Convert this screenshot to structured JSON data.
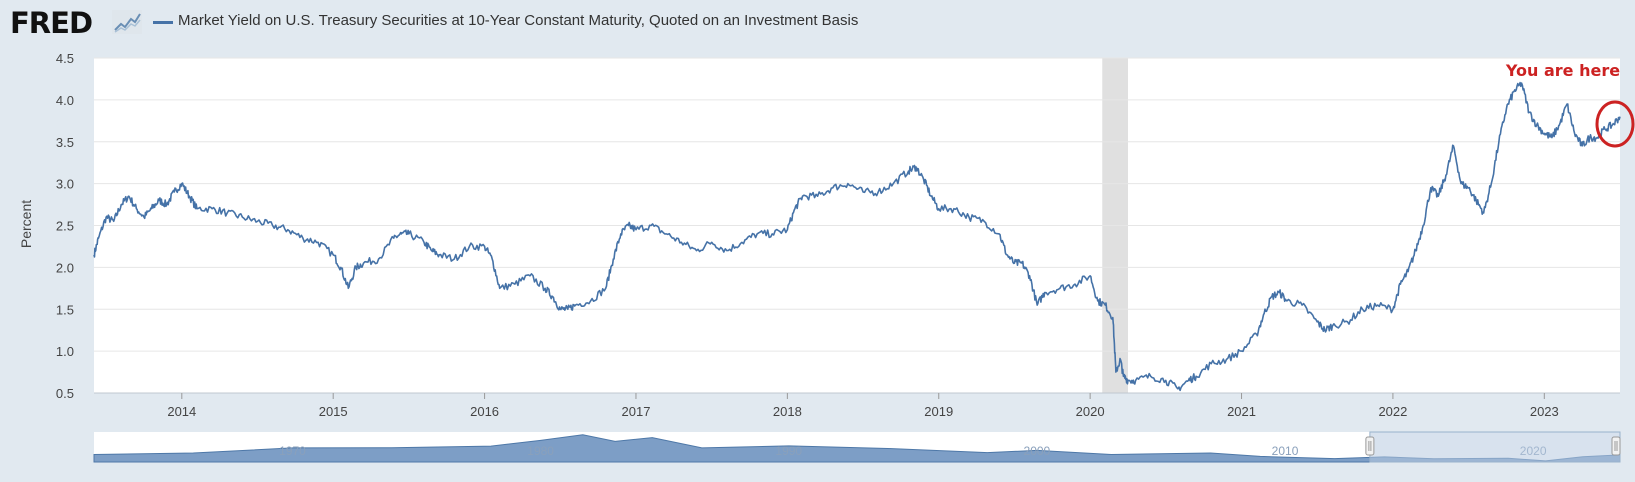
{
  "header": {
    "logo_text": "FRED",
    "logo_icon": "line-chart-icon",
    "series_title": "Market Yield on U.S. Treasury Securities at 10-Year Constant Maturity, Quoted on an Investment Basis"
  },
  "annotation": {
    "text": "You are here",
    "color": "#cc2222"
  },
  "navigator": {
    "labels": [
      "1970",
      "1980",
      "1990",
      "2000",
      "2010",
      "2020"
    ],
    "selection_range": [
      2013.42,
      2023.5
    ],
    "full_range": [
      1962,
      2023.5
    ]
  },
  "colors": {
    "line": "#4572a7",
    "background": "#e1e9f0",
    "plot_area": "#ffffff",
    "recession": "#e0e0e0",
    "annotation": "#cc2222"
  },
  "chart_data": {
    "type": "line",
    "title": "Market Yield on U.S. Treasury Securities at 10-Year Constant Maturity, Quoted on an Investment Basis",
    "xlabel": "",
    "ylabel": "Percent",
    "xlim": [
      2013.42,
      2023.5
    ],
    "ylim": [
      0.5,
      4.5
    ],
    "yticks": [
      0.5,
      1.0,
      1.5,
      2.0,
      2.5,
      3.0,
      3.5,
      4.0,
      4.5
    ],
    "ytick_labels": [
      "0.5",
      "1.0",
      "1.5",
      "2.0",
      "2.5",
      "3.0",
      "3.5",
      "4.0",
      "4.5"
    ],
    "xticks": [
      2014,
      2015,
      2016,
      2017,
      2018,
      2019,
      2020,
      2021,
      2022,
      2023
    ],
    "xtick_labels": [
      "2014",
      "2015",
      "2016",
      "2017",
      "2018",
      "2019",
      "2020",
      "2021",
      "2022",
      "2023"
    ],
    "grid": true,
    "recession_shading": [
      2020.08,
      2020.25
    ],
    "series": [
      {
        "color": "#4572a7",
        "x": [
          2013.42,
          2013.45,
          2013.5,
          2013.55,
          2013.6,
          2013.65,
          2013.7,
          2013.75,
          2013.8,
          2013.85,
          2013.9,
          2013.95,
          2014.0,
          2014.05,
          2014.1,
          2014.2,
          2014.3,
          2014.4,
          2014.5,
          2014.6,
          2014.7,
          2014.8,
          2014.9,
          2015.0,
          2015.05,
          2015.1,
          2015.15,
          2015.2,
          2015.3,
          2015.4,
          2015.45,
          2015.5,
          2015.6,
          2015.65,
          2015.7,
          2015.8,
          2015.9,
          2016.0,
          2016.05,
          2016.1,
          2016.2,
          2016.3,
          2016.4,
          2016.45,
          2016.5,
          2016.55,
          2016.6,
          2016.7,
          2016.8,
          2016.85,
          2016.9,
          2016.95,
          2017.0,
          2017.1,
          2017.2,
          2017.3,
          2017.4,
          2017.5,
          2017.6,
          2017.7,
          2017.8,
          2017.9,
          2018.0,
          2018.05,
          2018.1,
          2018.2,
          2018.3,
          2018.4,
          2018.5,
          2018.6,
          2018.7,
          2018.8,
          2018.85,
          2018.9,
          2018.95,
          2019.0,
          2019.1,
          2019.2,
          2019.3,
          2019.4,
          2019.45,
          2019.5,
          2019.55,
          2019.6,
          2019.65,
          2019.7,
          2019.8,
          2019.9,
          2020.0,
          2020.05,
          2020.1,
          2020.15,
          2020.17,
          2020.2,
          2020.22,
          2020.25,
          2020.3,
          2020.4,
          2020.5,
          2020.58,
          2020.65,
          2020.7,
          2020.8,
          2020.9,
          2021.0,
          2021.1,
          2021.15,
          2021.2,
          2021.25,
          2021.3,
          2021.4,
          2021.5,
          2021.55,
          2021.6,
          2021.7,
          2021.8,
          2021.9,
          2022.0,
          2022.05,
          2022.1,
          2022.15,
          2022.2,
          2022.25,
          2022.3,
          2022.35,
          2022.4,
          2022.45,
          2022.5,
          2022.55,
          2022.6,
          2022.65,
          2022.7,
          2022.75,
          2022.8,
          2022.85,
          2022.9,
          2022.95,
          2023.0,
          2023.05,
          2023.1,
          2023.15,
          2023.2,
          2023.25,
          2023.3,
          2023.35,
          2023.4,
          2023.45,
          2023.5
        ],
        "y": [
          2.15,
          2.35,
          2.6,
          2.55,
          2.75,
          2.85,
          2.7,
          2.6,
          2.7,
          2.8,
          2.75,
          2.9,
          3.0,
          2.85,
          2.7,
          2.7,
          2.65,
          2.6,
          2.55,
          2.5,
          2.45,
          2.35,
          2.3,
          2.15,
          2.0,
          1.75,
          2.0,
          2.05,
          2.1,
          2.35,
          2.4,
          2.4,
          2.3,
          2.2,
          2.15,
          2.1,
          2.25,
          2.25,
          2.1,
          1.75,
          1.8,
          1.9,
          1.75,
          1.65,
          1.5,
          1.5,
          1.55,
          1.6,
          1.75,
          2.1,
          2.4,
          2.5,
          2.45,
          2.5,
          2.4,
          2.3,
          2.2,
          2.3,
          2.2,
          2.3,
          2.4,
          2.4,
          2.45,
          2.7,
          2.85,
          2.85,
          2.95,
          3.0,
          2.9,
          2.9,
          3.0,
          3.15,
          3.2,
          3.05,
          2.85,
          2.7,
          2.7,
          2.6,
          2.55,
          2.4,
          2.15,
          2.05,
          2.05,
          1.9,
          1.55,
          1.7,
          1.75,
          1.8,
          1.9,
          1.6,
          1.55,
          1.4,
          0.75,
          0.9,
          0.7,
          0.65,
          0.65,
          0.7,
          0.65,
          0.55,
          0.65,
          0.7,
          0.85,
          0.9,
          1.0,
          1.2,
          1.45,
          1.65,
          1.7,
          1.6,
          1.55,
          1.35,
          1.25,
          1.3,
          1.35,
          1.5,
          1.55,
          1.5,
          1.8,
          1.95,
          2.2,
          2.5,
          2.95,
          2.85,
          3.1,
          3.45,
          3.0,
          2.95,
          2.8,
          2.65,
          3.0,
          3.5,
          3.9,
          4.1,
          4.2,
          3.85,
          3.7,
          3.6,
          3.55,
          3.7,
          3.95,
          3.6,
          3.45,
          3.55,
          3.55,
          3.65,
          3.7,
          3.8
        ]
      }
    ]
  }
}
